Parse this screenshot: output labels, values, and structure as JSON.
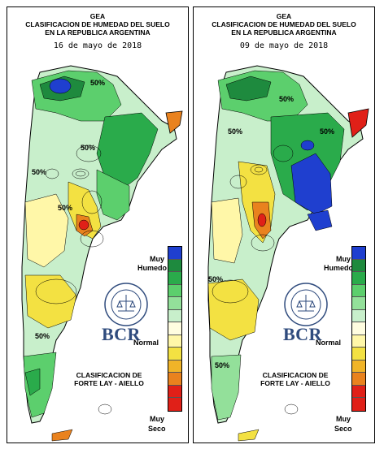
{
  "panels": [
    {
      "title_lines": [
        "GEA",
        "CLASIFICACION DE HUMEDAD DEL SUELO",
        "EN LA REPUBLICA ARGENTINA"
      ],
      "date": "16   de mayo de 2018",
      "iso_labels": [
        "50%",
        "50%",
        "50%",
        "50%",
        "50%"
      ]
    },
    {
      "title_lines": [
        "GEA",
        "CLASIFICACION DE HUMEDAD DEL SUELO",
        "EN LA REPUBLICA ARGENTINA"
      ],
      "date": "09   de mayo de 2018",
      "iso_labels": [
        "50%",
        "50%",
        "50%",
        "50%",
        "50%"
      ]
    }
  ],
  "legend": {
    "top_label_1": "Muy",
    "top_label_2": "Humedo",
    "mid_label": "Normal",
    "bottom_label_1": "Muy",
    "bottom_label_2": "Seco",
    "colors": [
      "#1f3fcf",
      "#1e8a3e",
      "#2aab4b",
      "#5ccf6d",
      "#93e09a",
      "#c8efcb",
      "#fffde0",
      "#fff7a8",
      "#f3e142",
      "#f0b428",
      "#e9821e",
      "#e02018"
    ]
  },
  "classification": {
    "line1": "CLASIFICACION DE",
    "line2": "FORTE LAY - AIELLO"
  },
  "logo_text": "BCR"
}
